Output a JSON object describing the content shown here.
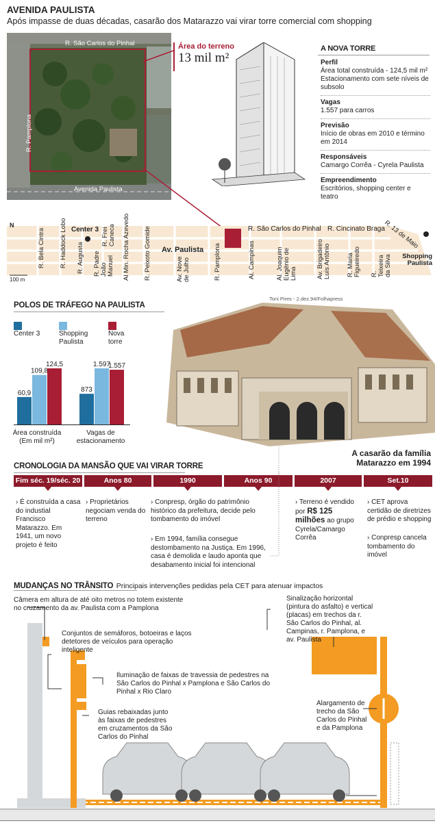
{
  "header": {
    "kicker": "AVENIDA PAULISTA",
    "headline": "Após impasse de duas décadas, casarão dos Matarazzo vai virar torre comercial com shopping"
  },
  "aerial": {
    "street_top": "R. São Carlos do Pinhal",
    "street_left": "R. Pamplona",
    "street_bottom": "Avenida Paulista",
    "area_label": "Área do terreno",
    "area_value": "13 mil m²"
  },
  "tower": {
    "title": "A NOVA TORRE",
    "items": [
      {
        "head": "Perfil",
        "text": "Área total construída - 124,5 mil m² Estacionamento com sete níveis de subsolo"
      },
      {
        "head": "Vagas",
        "text": "1.557 para carros"
      },
      {
        "head": "Previsão",
        "text": "Início de obras em 2010 e término em 2014"
      },
      {
        "head": "Responsáveis",
        "text": "Camargo Corrêa - Cyrela Paulista"
      },
      {
        "head": "Empreendimento",
        "text": "Escritórios, shopping center e teatro"
      }
    ]
  },
  "map": {
    "north": "N",
    "scale": "100 m",
    "center3": "Center 3",
    "avenue": "Av. Paulista",
    "sao_carlos": "R. São Carlos do Pinhal",
    "cincinato": "R. Cincinato Braga",
    "treze": "R. 13 de Maio",
    "shopping": "Shopping Paulista",
    "streets": [
      "R. Bela Cintra",
      "R. Haddock Lobo",
      "R. Augusta",
      "R. Padre João Manuel",
      "R. Frei Caneca",
      "Al Min. Rocha Azevedo",
      "R. Peixoto Gomide",
      "Av. Nove de Julho",
      "R. Pamplona",
      "Al. Campinas",
      "Al. Joaquim Eugênio de Lima",
      "Av. Brigadeiro Luís Antônio",
      "R. Maria Figueiredo",
      "R. Teixeira da Silva"
    ]
  },
  "chart_title": "POLOS DE TRÁFEGO NA PAULISTA",
  "chart_data": {
    "type": "bar",
    "categories": [
      "Área construída (Em mil m²)",
      "Vagas de estacionamento"
    ],
    "series": [
      {
        "name": "Center 3",
        "color": "#1f6e9e",
        "values": [
          60.9,
          873
        ],
        "labels": [
          "60,9",
          "873"
        ]
      },
      {
        "name": "Shopping Paulista",
        "color": "#7bb8df",
        "values": [
          109.8,
          1597
        ],
        "labels": [
          "109,8",
          "1.597"
        ]
      },
      {
        "name": "Nova torre",
        "color": "#a81e35",
        "values": [
          124.5,
          1557
        ],
        "labels": [
          "124,5",
          "1.557"
        ]
      }
    ]
  },
  "photo": {
    "credit": "Toni Pires - 2.dez.94/Folhapress",
    "caption": "A casarão da família Matarazzo em 1994"
  },
  "timeline": {
    "title": "CRONOLOGIA DA MANSÃO QUE VAI VIRAR TORRE",
    "tabs": [
      "Fim séc. 19/séc. 20",
      "Anos 80",
      "1990",
      "Anos 90",
      "2007",
      "Set.10"
    ],
    "t0": "› É construída a casa do industial Francisco Matarazzo. Em 1941, um novo projeto é feito",
    "t1": "› Proprietários negociam venda do terreno",
    "t2": "› Conpresp, órgão do patrimônio histórico da prefeitura, decide pelo tombamento do imóvel",
    "t3": "› Em 1994, família consegue destombamento na Justiça. Em 1996, casa é demolida e laudo aponta que desabamento inicial foi intencional",
    "t4a": "› Terreno é vendido por",
    "t4b": "R$ 125 milhões",
    "t4c": "ao grupo Cyrela/Camargo Corrêa",
    "t5a": "› CET aprova certidão de diretrizes de prédio e shopping",
    "t5b": "› Conpresp cancela tombamento do imóvel"
  },
  "transit": {
    "title": "MUDANÇAS NO TRÂNSITO",
    "subtitle": "Principais intervenções pedidas pela CET para atenuar impactos",
    "camera": "Câmera em altura de até oito metros no totem existente no cruzamento da av. Paulista com a Pamplona",
    "lights": "Conjuntos de semáforos, botoeiras e laços detetores de veículos para operação inteligente",
    "crossing": "Iluminação de faixas de travessia de pedestres na São Carlos do Pinhal x Pamplona e São Carlos do Pinhal x Rio Claro",
    "curbs": "Guias rebaixadas junto às faixas de pedestres em cruzamentos da São Carlos do Pinhal",
    "signs": "Sinalização horizontal (pintura do asfalto) e vertical (placas) em trechos da r. São Carlos do Pinhal, al. Campinas, r. Pamplona, e av. Paulista",
    "widening": "Alargamento de trecho da São Carlos do Pinhal e da Pamplona"
  }
}
